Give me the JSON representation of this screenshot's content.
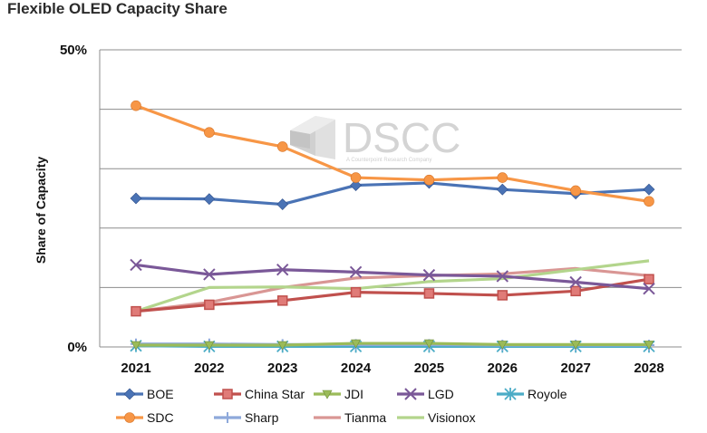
{
  "page": {
    "title": "Flexible OLED Capacity Share"
  },
  "watermark": {
    "logo_text": "DSCC",
    "tagline": "A Counterpoint Research Company"
  },
  "chart_data": {
    "type": "line",
    "title": "",
    "xlabel": "",
    "ylabel": "Share of Capacity",
    "ylim": [
      0,
      50
    ],
    "y_ticks": [
      0,
      10,
      20,
      30,
      40,
      50
    ],
    "y_tick_labels": [
      "0%",
      "",
      "",
      "",
      "",
      "50%"
    ],
    "grid": true,
    "legend_position": "bottom",
    "x": [
      "2021",
      "2022",
      "2023",
      "2024",
      "2025",
      "2026",
      "2027",
      "2028"
    ],
    "series": [
      {
        "name": "BOE",
        "color": "#4a73b5",
        "marker": "diamond",
        "values": [
          25.0,
          24.9,
          24.0,
          27.2,
          27.6,
          26.5,
          25.8,
          26.5
        ]
      },
      {
        "name": "China Star",
        "color": "#c0504d",
        "marker": "square",
        "values": [
          6.0,
          7.1,
          7.8,
          9.2,
          9.0,
          8.7,
          9.4,
          11.4
        ]
      },
      {
        "name": "JDI",
        "color": "#9bbb59",
        "marker": "triangle",
        "values": [
          0.3,
          0.3,
          0.3,
          0.6,
          0.6,
          0.4,
          0.4,
          0.4
        ]
      },
      {
        "name": "LGD",
        "color": "#7a5898",
        "marker": "x",
        "values": [
          13.8,
          12.2,
          13.0,
          12.6,
          12.1,
          11.9,
          10.9,
          9.8
        ]
      },
      {
        "name": "Royole",
        "color": "#4bacc6",
        "marker": "star",
        "values": [
          0.2,
          0.1,
          0.1,
          0.1,
          0.1,
          0.1,
          0.1,
          0.1
        ]
      },
      {
        "name": "SDC",
        "color": "#f79646",
        "marker": "circle",
        "values": [
          40.6,
          36.1,
          33.7,
          28.5,
          28.1,
          28.5,
          26.3,
          24.5
        ]
      },
      {
        "name": "Sharp",
        "color": "#8ea9db",
        "marker": "plus",
        "values": [
          0.5,
          0.5,
          0.4,
          0.4,
          0.4,
          0.3,
          0.3,
          0.3
        ]
      },
      {
        "name": "Tianma",
        "color": "#d99694",
        "marker": "none",
        "values": [
          6.0,
          7.5,
          10.0,
          11.6,
          12.0,
          12.3,
          13.2,
          12.0
        ]
      },
      {
        "name": "Visionox",
        "color": "#b3d58c",
        "marker": "none",
        "values": [
          6.0,
          10.0,
          10.1,
          9.8,
          11.0,
          11.5,
          13.0,
          14.5
        ]
      }
    ]
  }
}
